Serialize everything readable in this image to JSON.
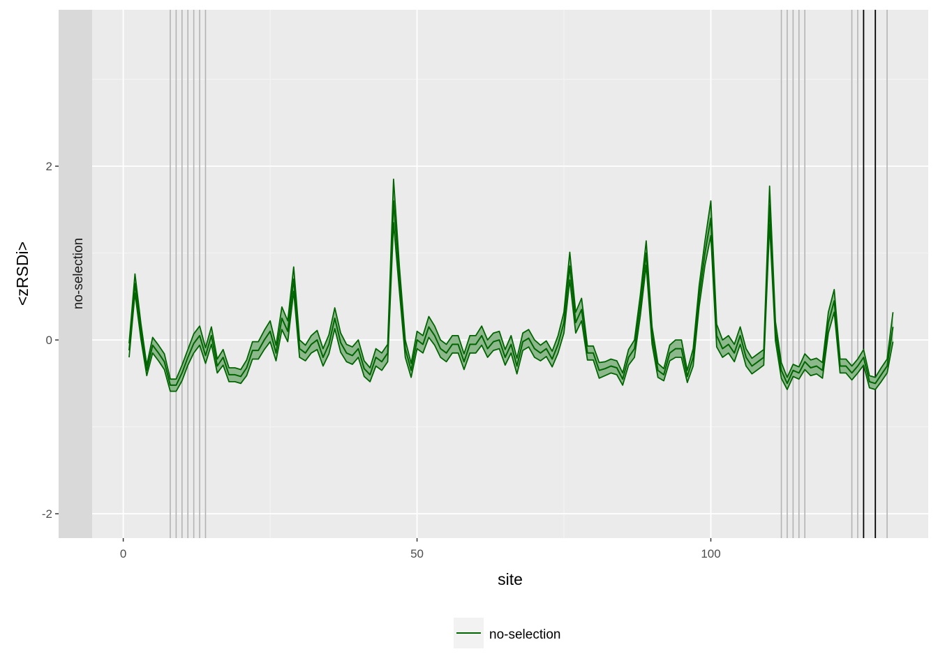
{
  "colors": {
    "panel_bg": "#ebebeb",
    "strip_bg": "#d9d9d9",
    "grid_major": "#ffffff",
    "grid_minor": "#f5f5f5",
    "series_line": "#006400",
    "ribbon_fill": "#8cb88c",
    "vline_grey": "#b3b3b3",
    "vline_black": "#000000",
    "legend_key_bg": "#f2f2f2"
  },
  "chart_data": {
    "type": "line",
    "title": "",
    "xlabel": "site",
    "ylabel": "<zRSDi>",
    "facet_label": "no-selection",
    "xlim": [
      -11,
      137
    ],
    "ylim": [
      -2.28,
      3.8
    ],
    "x_ticks": [
      0,
      50,
      100
    ],
    "x_tick_labels": [
      "0",
      "50",
      "100"
    ],
    "y_ticks": [
      -2,
      0,
      2
    ],
    "y_tick_labels": [
      "-2",
      "0",
      "2"
    ],
    "grid": true,
    "legend_position": "bottom",
    "legend": [
      {
        "label": "no-selection",
        "color": "#006400"
      }
    ],
    "vlines_grey": [
      8,
      9,
      10,
      11,
      12,
      13,
      14,
      112,
      113,
      114,
      115,
      116,
      124,
      125,
      128,
      130
    ],
    "vlines_black": [
      126,
      128
    ],
    "series": [
      {
        "name": "no-selection",
        "x": [
          1,
          2,
          3,
          4,
          5,
          6,
          7,
          8,
          9,
          10,
          11,
          12,
          13,
          14,
          15,
          16,
          17,
          18,
          19,
          20,
          21,
          22,
          23,
          24,
          25,
          26,
          27,
          28,
          29,
          30,
          31,
          32,
          33,
          34,
          35,
          36,
          37,
          38,
          39,
          40,
          41,
          42,
          43,
          44,
          45,
          46,
          47,
          48,
          49,
          50,
          51,
          52,
          53,
          54,
          55,
          56,
          57,
          58,
          59,
          60,
          61,
          62,
          63,
          64,
          65,
          66,
          67,
          68,
          69,
          70,
          71,
          72,
          73,
          74,
          75,
          76,
          77,
          78,
          79,
          80,
          81,
          82,
          83,
          84,
          85,
          86,
          87,
          88,
          89,
          90,
          91,
          92,
          93,
          94,
          95,
          96,
          97,
          98,
          99,
          100,
          101,
          102,
          103,
          104,
          105,
          106,
          107,
          108,
          109,
          110,
          111,
          112,
          113,
          114,
          115,
          116,
          117,
          118,
          119,
          120,
          121,
          122,
          123,
          124,
          125,
          126,
          127,
          128,
          129,
          130,
          131
        ],
        "y": [
          -0.12,
          0.65,
          0.1,
          -0.35,
          -0.06,
          -0.15,
          -0.25,
          -0.52,
          -0.52,
          -0.38,
          -0.2,
          -0.04,
          0.05,
          -0.18,
          0.05,
          -0.3,
          -0.2,
          -0.4,
          -0.4,
          -0.42,
          -0.32,
          -0.12,
          -0.12,
          0.0,
          0.1,
          -0.15,
          0.25,
          0.1,
          0.7,
          -0.1,
          -0.15,
          -0.05,
          0.0,
          -0.2,
          -0.05,
          0.25,
          -0.03,
          -0.15,
          -0.18,
          -0.1,
          -0.33,
          -0.4,
          -0.2,
          -0.25,
          -0.15,
          1.6,
          0.7,
          -0.1,
          -0.35,
          0.0,
          -0.05,
          0.15,
          0.05,
          -0.1,
          -0.15,
          -0.05,
          -0.05,
          -0.25,
          -0.05,
          -0.05,
          0.05,
          -0.1,
          -0.02,
          0.0,
          -0.2,
          -0.05,
          -0.3,
          -0.02,
          0.02,
          -0.1,
          -0.15,
          -0.1,
          -0.22,
          -0.05,
          0.2,
          0.85,
          0.2,
          0.35,
          -0.15,
          -0.15,
          -0.35,
          -0.33,
          -0.3,
          -0.32,
          -0.45,
          -0.2,
          -0.1,
          0.4,
          1.0,
          0.05,
          -0.35,
          -0.4,
          -0.15,
          -0.1,
          -0.1,
          -0.42,
          -0.2,
          0.5,
          1.0,
          1.4,
          0.05,
          -0.1,
          -0.05,
          -0.15,
          0.05,
          -0.2,
          -0.3,
          -0.25,
          -0.2,
          1.55,
          0.1,
          -0.35,
          -0.5,
          -0.35,
          -0.38,
          -0.25,
          -0.32,
          -0.3,
          -0.35,
          0.2,
          0.45,
          -0.3,
          -0.3,
          -0.38,
          -0.3,
          -0.2,
          -0.48,
          -0.5,
          -0.4,
          -0.3,
          0.15
        ],
        "ribbon_halfwidth": [
          0.08,
          0.11,
          0.09,
          0.06,
          0.09,
          0.09,
          0.09,
          0.07,
          0.07,
          0.09,
          0.09,
          0.11,
          0.11,
          0.09,
          0.1,
          0.08,
          0.09,
          0.08,
          0.08,
          0.08,
          0.09,
          0.1,
          0.1,
          0.11,
          0.12,
          0.09,
          0.13,
          0.12,
          0.14,
          0.1,
          0.09,
          0.1,
          0.11,
          0.1,
          0.11,
          0.12,
          0.11,
          0.1,
          0.1,
          0.1,
          0.09,
          0.08,
          0.1,
          0.1,
          0.1,
          0.25,
          0.14,
          0.1,
          0.08,
          0.1,
          0.1,
          0.12,
          0.11,
          0.1,
          0.1,
          0.1,
          0.1,
          0.09,
          0.1,
          0.1,
          0.11,
          0.1,
          0.1,
          0.1,
          0.09,
          0.1,
          0.09,
          0.1,
          0.1,
          0.1,
          0.09,
          0.09,
          0.09,
          0.1,
          0.12,
          0.16,
          0.12,
          0.13,
          0.08,
          0.08,
          0.09,
          0.08,
          0.08,
          0.08,
          0.07,
          0.09,
          0.1,
          0.12,
          0.14,
          0.1,
          0.08,
          0.07,
          0.09,
          0.1,
          0.1,
          0.07,
          0.1,
          0.12,
          0.14,
          0.2,
          0.13,
          0.1,
          0.1,
          0.1,
          0.1,
          0.1,
          0.09,
          0.09,
          0.09,
          0.22,
          0.11,
          0.09,
          0.07,
          0.07,
          0.07,
          0.09,
          0.09,
          0.09,
          0.09,
          0.12,
          0.13,
          0.08,
          0.08,
          0.08,
          0.08,
          0.09,
          0.07,
          0.07,
          0.08,
          0.08,
          0.17
        ]
      }
    ]
  }
}
